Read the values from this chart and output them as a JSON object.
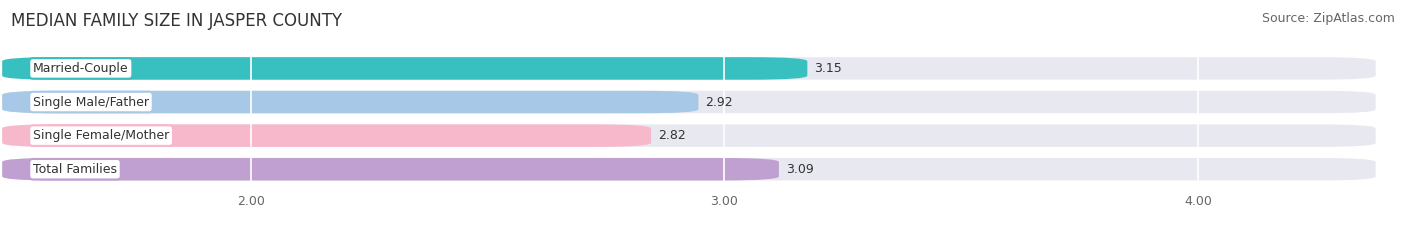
{
  "title": "MEDIAN FAMILY SIZE IN JASPER COUNTY",
  "source": "Source: ZipAtlas.com",
  "categories": [
    "Married-Couple",
    "Single Male/Father",
    "Single Female/Mother",
    "Total Families"
  ],
  "values": [
    3.15,
    2.92,
    2.82,
    3.09
  ],
  "bar_colors": [
    "#38bfbf",
    "#a8c8e8",
    "#f8b8cc",
    "#c0a0d0"
  ],
  "bar_bg_color": "#e8e8f0",
  "label_border_colors": [
    "#38bfbf",
    "#a8c8e8",
    "#f8b8cc",
    "#c0a0d0"
  ],
  "xlim_min": 1.5,
  "xlim_max": 4.35,
  "xmin": 1.5,
  "xticks": [
    2.0,
    3.0,
    4.0
  ],
  "xtick_labels": [
    "2.00",
    "3.00",
    "4.00"
  ],
  "bar_height": 0.62,
  "background_color": "#ffffff",
  "title_fontsize": 12,
  "source_fontsize": 9,
  "label_fontsize": 9,
  "value_fontsize": 9,
  "grid_color": "#ddddee"
}
